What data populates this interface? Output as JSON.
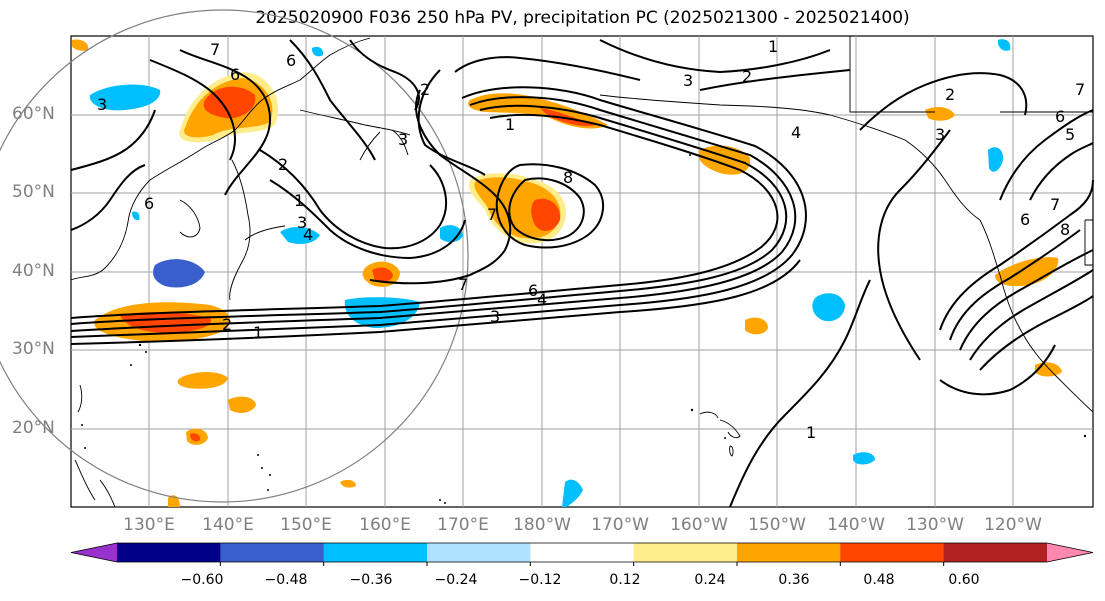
{
  "title": "2025020900 F036 250 hPa PV, precipitation PC (2025021300 - 2025021400)",
  "lat_labels": [
    "60°N",
    "50°N",
    "40°N",
    "30°N",
    "20°N"
  ],
  "lon_labels": [
    "130°E",
    "140°E",
    "150°E",
    "160°E",
    "170°E",
    "180°W",
    "170°W",
    "160°W",
    "150°W",
    "140°W",
    "130°W",
    "120°W"
  ],
  "colorbar": {
    "tick_labels": [
      "−0.60",
      "−0.48",
      "−0.36",
      "−0.24",
      "−0.12",
      "0.12",
      "0.24",
      "0.36",
      "0.48",
      "0.60"
    ],
    "colors": [
      "#9932cc",
      "#00008b",
      "#3a5fcd",
      "#00bfff",
      "#b0e2ff",
      "#ffffff",
      "#ffec8b",
      "#ffa500",
      "#ff4500",
      "#b22222",
      "#ff88b0"
    ]
  },
  "contour_labels": [
    "1",
    "2",
    "3",
    "4",
    "5",
    "6",
    "7",
    "8"
  ]
}
